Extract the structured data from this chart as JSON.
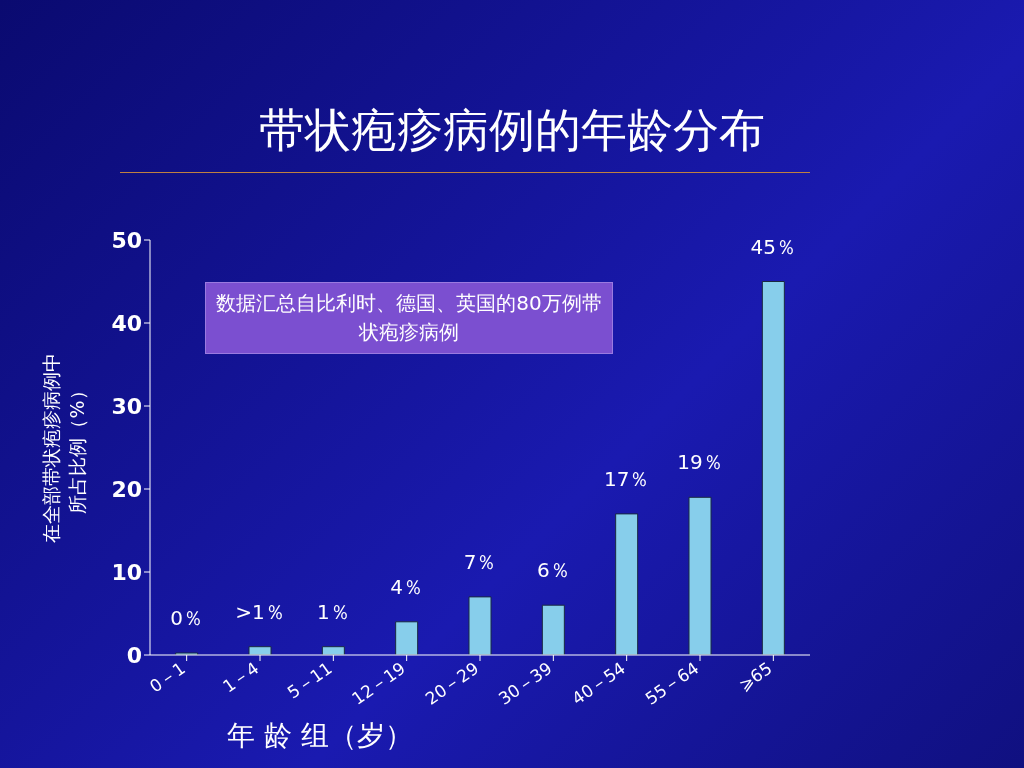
{
  "chart_data": {
    "type": "bar",
    "title": "带状疱疹病例的年龄分布",
    "xlabel": "年 龄 组（岁）",
    "ylabel": "在全部带状疱疹病例中所占比例（%）",
    "categories": [
      "0－1",
      "1－4",
      "5－11",
      "12－19",
      "20－29",
      "30－39",
      "40－54",
      "55－64",
      "⩾65"
    ],
    "values": [
      0,
      1,
      1,
      4,
      7,
      6,
      17,
      19,
      45
    ],
    "value_labels": [
      "0％",
      ">1％",
      "1％",
      "4％",
      "7％",
      "6％",
      "17％",
      "19％",
      "45％"
    ],
    "color": "#87ceeb",
    "ylim": [
      0,
      50
    ],
    "yticks": [
      0,
      10,
      20,
      30,
      40,
      50
    ],
    "annotations": [
      "数据汇总自比利时、德国、英国的80万例带状疱疹病例"
    ]
  }
}
